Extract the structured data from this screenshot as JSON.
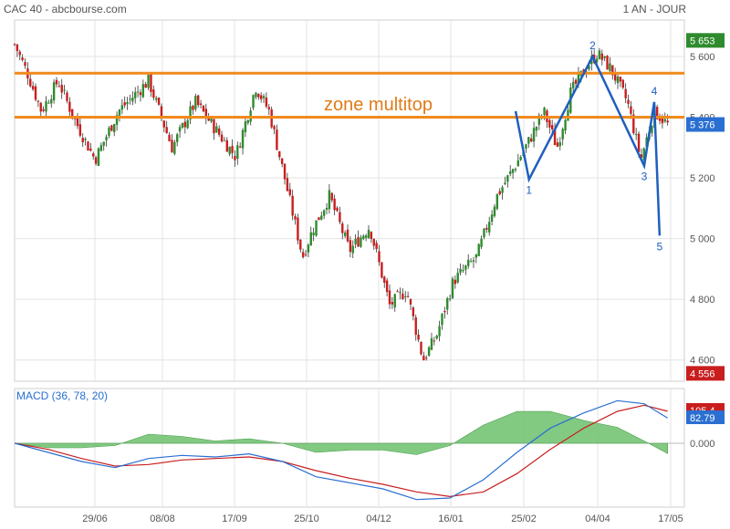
{
  "header": {
    "left": "CAC 40 - abcbourse.com",
    "right": "1 AN - JOUR"
  },
  "annotation": {
    "zone_label": "zone multitop"
  },
  "colors": {
    "up": "#2e8b2e",
    "down": "#c81e1e",
    "resistance": "#f08a1c",
    "wave": "#1f5fbf",
    "macd": "#2a6fd1",
    "signal": "#c81e1e",
    "histogram": "#6cbf6c",
    "grid": "#e3e3e3"
  },
  "chart_data": [
    {
      "type": "candlestick",
      "title": "CAC 40",
      "x_tick_labels": [
        "29/06",
        "08/08",
        "17/09",
        "25/10",
        "04/12",
        "16/01",
        "25/02",
        "04/04",
        "17/05"
      ],
      "y_tick_labels": [
        "5 600",
        "5 400",
        "5 200",
        "5 000",
        "4 800",
        "4 600"
      ],
      "y_ticks": [
        5600,
        5400,
        5200,
        5000,
        4800,
        4600
      ],
      "ylim": [
        4530,
        5720
      ],
      "price_tags": [
        {
          "label": "5 653",
          "value": 5653,
          "color": "#2e8b2e"
        },
        {
          "label": "5 376",
          "value": 5376,
          "color": "#2a6fd1"
        },
        {
          "label": "4 556",
          "value": 4556,
          "color": "#c81e1e"
        }
      ],
      "resistance_levels": [
        5545,
        5400
      ],
      "waves": [
        {
          "label": "1",
          "position": 0.768,
          "value": 5195
        },
        {
          "label": "2",
          "position": 0.863,
          "value": 5600
        },
        {
          "label": "3",
          "position": 0.94,
          "value": 5240
        },
        {
          "label": "4",
          "position": 0.955,
          "value": 5450
        },
        {
          "label": "5",
          "position": 0.963,
          "value": 5010
        }
      ],
      "close_path": [
        {
          "pos": 0.0,
          "close": 5640
        },
        {
          "pos": 0.02,
          "close": 5540
        },
        {
          "pos": 0.04,
          "close": 5420
        },
        {
          "pos": 0.065,
          "close": 5520
        },
        {
          "pos": 0.09,
          "close": 5390
        },
        {
          "pos": 0.12,
          "close": 5260
        },
        {
          "pos": 0.155,
          "close": 5420
        },
        {
          "pos": 0.2,
          "close": 5520
        },
        {
          "pos": 0.235,
          "close": 5300
        },
        {
          "pos": 0.27,
          "close": 5450
        },
        {
          "pos": 0.3,
          "close": 5360
        },
        {
          "pos": 0.33,
          "close": 5270
        },
        {
          "pos": 0.36,
          "close": 5500
        },
        {
          "pos": 0.38,
          "close": 5420
        },
        {
          "pos": 0.4,
          "close": 5230
        },
        {
          "pos": 0.43,
          "close": 4940
        },
        {
          "pos": 0.445,
          "close": 5030
        },
        {
          "pos": 0.47,
          "close": 5140
        },
        {
          "pos": 0.5,
          "close": 4960
        },
        {
          "pos": 0.53,
          "close": 5040
        },
        {
          "pos": 0.56,
          "close": 4780
        },
        {
          "pos": 0.585,
          "close": 4830
        },
        {
          "pos": 0.61,
          "close": 4600
        },
        {
          "pos": 0.63,
          "close": 4680
        },
        {
          "pos": 0.655,
          "close": 4860
        },
        {
          "pos": 0.69,
          "close": 4940
        },
        {
          "pos": 0.72,
          "close": 5140
        },
        {
          "pos": 0.75,
          "close": 5250
        },
        {
          "pos": 0.77,
          "close": 5330
        },
        {
          "pos": 0.79,
          "close": 5420
        },
        {
          "pos": 0.81,
          "close": 5300
        },
        {
          "pos": 0.83,
          "close": 5480
        },
        {
          "pos": 0.855,
          "close": 5570
        },
        {
          "pos": 0.87,
          "close": 5610
        },
        {
          "pos": 0.89,
          "close": 5560
        },
        {
          "pos": 0.915,
          "close": 5450
        },
        {
          "pos": 0.935,
          "close": 5260
        },
        {
          "pos": 0.955,
          "close": 5420
        },
        {
          "pos": 0.975,
          "close": 5376
        }
      ]
    },
    {
      "type": "line",
      "title": "MACD (36, 78, 20)",
      "y_tick_labels": [
        "0.000"
      ],
      "ylim": [
        -210,
        180
      ],
      "value_tags": [
        {
          "label": "105.4",
          "value": 105.4,
          "color": "#c81e1e"
        },
        {
          "label": "82.79",
          "value": 82.79,
          "color": "#2a6fd1"
        }
      ],
      "series": [
        {
          "role": "macd",
          "points": [
            {
              "pos": 0.0,
              "v": 0
            },
            {
              "pos": 0.05,
              "v": -30
            },
            {
              "pos": 0.1,
              "v": -60
            },
            {
              "pos": 0.15,
              "v": -80
            },
            {
              "pos": 0.2,
              "v": -50
            },
            {
              "pos": 0.25,
              "v": -40
            },
            {
              "pos": 0.3,
              "v": -45
            },
            {
              "pos": 0.35,
              "v": -35
            },
            {
              "pos": 0.4,
              "v": -60
            },
            {
              "pos": 0.45,
              "v": -110
            },
            {
              "pos": 0.5,
              "v": -130
            },
            {
              "pos": 0.55,
              "v": -150
            },
            {
              "pos": 0.6,
              "v": -185
            },
            {
              "pos": 0.65,
              "v": -180
            },
            {
              "pos": 0.7,
              "v": -120
            },
            {
              "pos": 0.75,
              "v": -30
            },
            {
              "pos": 0.8,
              "v": 50
            },
            {
              "pos": 0.85,
              "v": 100
            },
            {
              "pos": 0.9,
              "v": 140
            },
            {
              "pos": 0.94,
              "v": 130
            },
            {
              "pos": 0.975,
              "v": 82.79
            }
          ]
        },
        {
          "role": "signal",
          "points": [
            {
              "pos": 0.0,
              "v": 0
            },
            {
              "pos": 0.05,
              "v": -20
            },
            {
              "pos": 0.1,
              "v": -50
            },
            {
              "pos": 0.15,
              "v": -75
            },
            {
              "pos": 0.2,
              "v": -70
            },
            {
              "pos": 0.25,
              "v": -55
            },
            {
              "pos": 0.3,
              "v": -50
            },
            {
              "pos": 0.35,
              "v": -45
            },
            {
              "pos": 0.4,
              "v": -60
            },
            {
              "pos": 0.45,
              "v": -90
            },
            {
              "pos": 0.5,
              "v": -115
            },
            {
              "pos": 0.55,
              "v": -135
            },
            {
              "pos": 0.6,
              "v": -160
            },
            {
              "pos": 0.65,
              "v": -175
            },
            {
              "pos": 0.7,
              "v": -160
            },
            {
              "pos": 0.75,
              "v": -100
            },
            {
              "pos": 0.8,
              "v": -20
            },
            {
              "pos": 0.85,
              "v": 50
            },
            {
              "pos": 0.9,
              "v": 105
            },
            {
              "pos": 0.94,
              "v": 125
            },
            {
              "pos": 0.975,
              "v": 105.4
            }
          ]
        }
      ]
    }
  ]
}
